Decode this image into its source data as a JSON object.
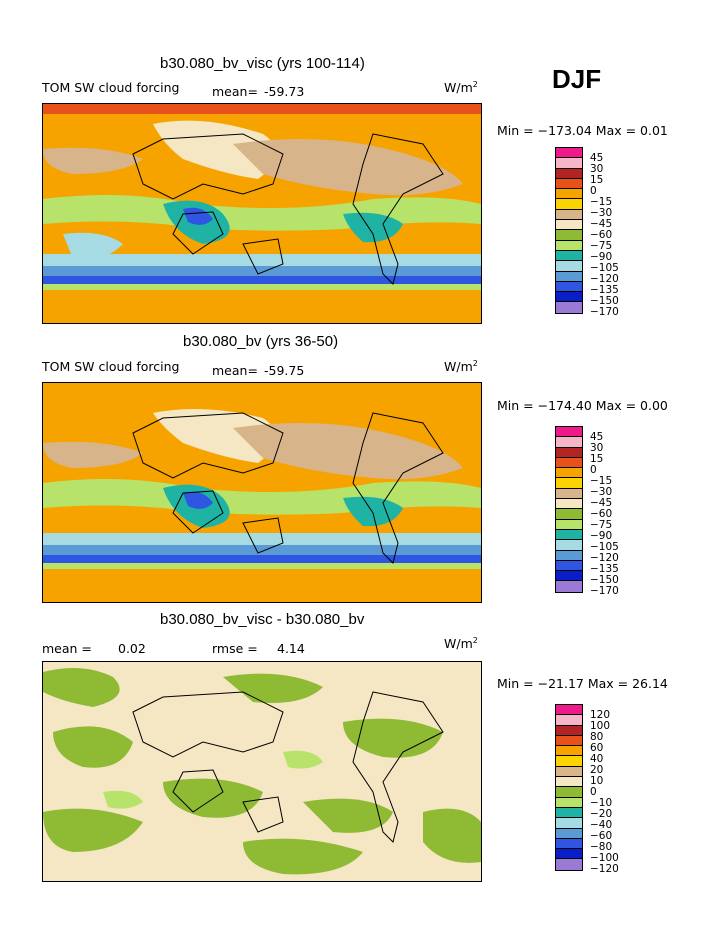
{
  "season": "DJF",
  "colors": {
    "magenta": "#ee1a8c",
    "pink": "#f7b5c8",
    "darkred": "#b22323",
    "red": "#e8221a",
    "orange": "#f6a300",
    "yellow": "#fbd300",
    "tan": "#d8b48a",
    "cream": "#f5e6c4",
    "olive": "#8fba34",
    "lightgreen": "#b7e36a",
    "teal": "#1fb3a4",
    "lightblue": "#a6dbe3",
    "blue": "#5b9bd5",
    "midblue": "#2f56e0",
    "darkblue": "#0a1ec8",
    "purple": "#9b7ad6"
  },
  "panels": [
    {
      "title": "b30.080_bv_visc (yrs 100-114)",
      "left_label": "TOM SW cloud forcing",
      "mean_label": "mean=",
      "mean_value": "-59.73",
      "units": "W/m",
      "units_sup": "2",
      "minmax": "Min = −173.04 Max =    0.01",
      "levels": [
        "45",
        "30",
        "15",
        "0",
        "−15",
        "−30",
        "−45",
        "−60",
        "−75",
        "−90",
        "−105",
        "−120",
        "−135",
        "−150",
        "−170"
      ]
    },
    {
      "title": "b30.080_bv (yrs 36-50)",
      "left_label": "TOM SW cloud forcing",
      "mean_label": "mean=",
      "mean_value": "-59.75",
      "units": "W/m",
      "units_sup": "2",
      "minmax": "Min = −174.40 Max =    0.00",
      "levels": [
        "45",
        "30",
        "15",
        "0",
        "−15",
        "−30",
        "−45",
        "−60",
        "−75",
        "−90",
        "−105",
        "−120",
        "−135",
        "−150",
        "−170"
      ]
    },
    {
      "title": "b30.080_bv_visc - b30.080_bv",
      "left_label": "mean =",
      "mean_label": "",
      "mean_value": "0.02",
      "rmse_label": "rmse =",
      "rmse_value": "4.14",
      "units": "W/m",
      "units_sup": "2",
      "minmax": "Min = −21.17 Max =  26.14",
      "levels": [
        "120",
        "100",
        "80",
        "60",
        "40",
        "20",
        "10",
        "0",
        "−10",
        "−20",
        "−40",
        "−60",
        "−80",
        "−100",
        "−120"
      ]
    }
  ],
  "chart_data": [
    {
      "type": "heatmap",
      "title": "b30.080_bv_visc (yrs 100-114)",
      "variable": "TOM SW cloud forcing",
      "units": "W/m2",
      "mean": -59.73,
      "min": -173.04,
      "max": 0.01,
      "contour_levels": [
        45,
        30,
        15,
        0,
        -15,
        -30,
        -45,
        -60,
        -75,
        -90,
        -105,
        -120,
        -135,
        -150,
        -170
      ]
    },
    {
      "type": "heatmap",
      "title": "b30.080_bv (yrs 36-50)",
      "variable": "TOM SW cloud forcing",
      "units": "W/m2",
      "mean": -59.75,
      "min": -174.4,
      "max": 0.0,
      "contour_levels": [
        45,
        30,
        15,
        0,
        -15,
        -30,
        -45,
        -60,
        -75,
        -90,
        -105,
        -120,
        -135,
        -150,
        -170
      ]
    },
    {
      "type": "heatmap",
      "title": "b30.080_bv_visc - b30.080_bv",
      "units": "W/m2",
      "mean": 0.02,
      "rmse": 4.14,
      "min": -21.17,
      "max": 26.14,
      "contour_levels": [
        120,
        100,
        80,
        60,
        40,
        20,
        10,
        0,
        -10,
        -20,
        -40,
        -60,
        -80,
        -100,
        -120
      ]
    }
  ]
}
